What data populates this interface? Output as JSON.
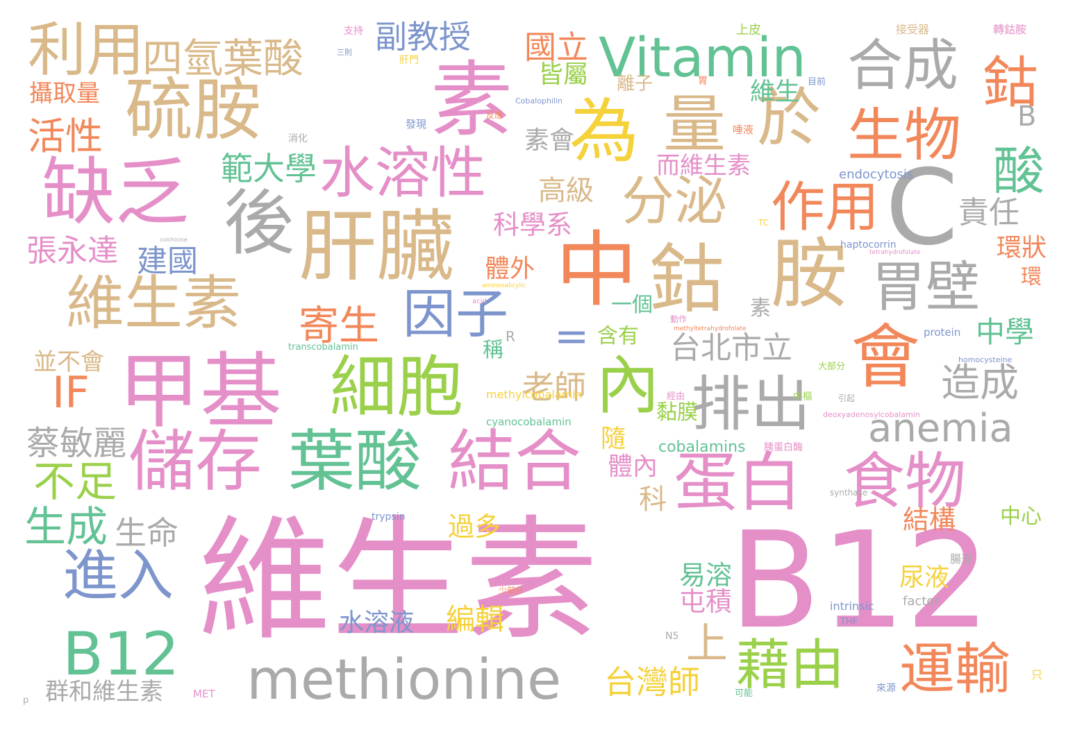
{
  "palette": {
    "pink": "#e58fc8",
    "tan": "#d9b98a",
    "green": "#62c294",
    "lime": "#9ad04a",
    "orange": "#f2875a",
    "blue": "#7d95cc",
    "gray": "#aaaaaa",
    "yellow": "#f5d13a"
  },
  "words": [
    {
      "text": "維生素",
      "color": "pink"
    },
    {
      "text": "B12",
      "color": "pink"
    },
    {
      "text": "中",
      "color": "orange"
    },
    {
      "text": "胺",
      "color": "tan"
    },
    {
      "text": "素",
      "color": "pink"
    },
    {
      "text": "肝臟",
      "color": "tan"
    },
    {
      "text": "鈷",
      "color": "tan"
    },
    {
      "text": "甲基",
      "color": "pink"
    },
    {
      "text": "會",
      "color": "orange"
    },
    {
      "text": "C",
      "color": "gray"
    },
    {
      "text": "Vitamin",
      "color": "green"
    },
    {
      "text": "硫胺",
      "color": "tan"
    },
    {
      "text": "缺乏",
      "color": "pink"
    },
    {
      "text": "後",
      "color": "gray"
    },
    {
      "text": "為",
      "color": "yellow"
    },
    {
      "text": "量",
      "color": "tan"
    },
    {
      "text": "於",
      "color": "tan"
    },
    {
      "text": "維生素",
      "color": "tan"
    },
    {
      "text": "細胞",
      "color": "lime"
    },
    {
      "text": "內",
      "color": "lime"
    },
    {
      "text": "儲存",
      "color": "pink"
    },
    {
      "text": "葉酸",
      "color": "green"
    },
    {
      "text": "結合",
      "color": "pink"
    },
    {
      "text": "蛋白",
      "color": "pink"
    },
    {
      "text": "食物",
      "color": "pink"
    },
    {
      "text": "水溶性",
      "color": "pink"
    },
    {
      "text": "胃壁",
      "color": "gray"
    },
    {
      "text": "排出",
      "color": "gray"
    },
    {
      "text": "methionine",
      "color": "gray"
    },
    {
      "text": "B12",
      "color": "green"
    },
    {
      "text": "利用",
      "color": "tan"
    },
    {
      "text": "合成",
      "color": "gray"
    },
    {
      "text": "生物",
      "color": "orange"
    },
    {
      "text": "分泌",
      "color": "tan"
    },
    {
      "text": "作用",
      "color": "orange"
    },
    {
      "text": "因子",
      "color": "blue"
    },
    {
      "text": "藉由",
      "color": "lime"
    },
    {
      "text": "運輸",
      "color": "orange"
    },
    {
      "text": "進入",
      "color": "blue"
    },
    {
      "text": "鈷",
      "color": "orange"
    },
    {
      "text": "酸",
      "color": "green"
    },
    {
      "text": "四氫葉酸",
      "color": "tan"
    },
    {
      "text": "anemia",
      "color": "gray"
    },
    {
      "text": "IF",
      "color": "orange"
    },
    {
      "text": "寄生",
      "color": "orange"
    },
    {
      "text": "造成",
      "color": "gray"
    },
    {
      "text": "台北市立",
      "color": "gray"
    },
    {
      "text": "中學",
      "color": "green"
    },
    {
      "text": "活性",
      "color": "orange"
    },
    {
      "text": "副教授",
      "color": "blue"
    },
    {
      "text": "國立",
      "color": "orange"
    },
    {
      "text": "範大學",
      "color": "green"
    },
    {
      "text": "張永達",
      "color": "pink"
    },
    {
      "text": "建國",
      "color": "blue"
    },
    {
      "text": "不足",
      "color": "lime"
    },
    {
      "text": "生成",
      "color": "green"
    },
    {
      "text": "生命",
      "color": "gray"
    },
    {
      "text": "蔡敏麗",
      "color": "gray"
    },
    {
      "text": "老師",
      "color": "tan"
    },
    {
      "text": "台灣師",
      "color": "yellow"
    },
    {
      "text": "群和維生素",
      "color": "gray"
    },
    {
      "text": "攝取量",
      "color": "orange"
    },
    {
      "text": "皆屬",
      "color": "lime"
    },
    {
      "text": "維生",
      "color": "green"
    },
    {
      "text": "高級",
      "color": "tan"
    },
    {
      "text": "科學系",
      "color": "pink"
    },
    {
      "text": "素會",
      "color": "gray"
    },
    {
      "text": "而維生素",
      "color": "pink"
    },
    {
      "text": "責任",
      "color": "gray"
    },
    {
      "text": "環狀",
      "color": "orange"
    },
    {
      "text": "環",
      "color": "orange"
    },
    {
      "text": "體外",
      "color": "orange"
    },
    {
      "text": "一個",
      "color": "green"
    },
    {
      "text": "素",
      "color": "gray"
    },
    {
      "text": "含有",
      "color": "lime"
    },
    {
      "text": "稱",
      "color": "green"
    },
    {
      "text": "=",
      "color": "blue"
    },
    {
      "text": "上",
      "color": "tan"
    },
    {
      "text": "隨",
      "color": "yellow"
    },
    {
      "text": "體內",
      "color": "pink"
    },
    {
      "text": "科",
      "color": "tan"
    },
    {
      "text": "過多",
      "color": "yellow"
    },
    {
      "text": "結構",
      "color": "orange"
    },
    {
      "text": "易溶",
      "color": "green"
    },
    {
      "text": "屯積",
      "color": "pink"
    },
    {
      "text": "尿液",
      "color": "yellow"
    },
    {
      "text": "中心",
      "color": "lime"
    },
    {
      "text": "水溶液",
      "color": "blue"
    },
    {
      "text": "編輯",
      "color": "yellow"
    },
    {
      "text": "並不會",
      "color": "tan"
    },
    {
      "text": "cobalamins",
      "color": "green"
    },
    {
      "text": "黏膜",
      "color": "lime"
    },
    {
      "text": "離子",
      "color": "tan"
    },
    {
      "text": "B",
      "color": "gray"
    },
    {
      "text": "endocytosis",
      "color": "blue"
    },
    {
      "text": "haptocorrin",
      "color": "blue"
    },
    {
      "text": "transcobalamin",
      "color": "green"
    },
    {
      "text": "methylcobalamin",
      "color": "yellow"
    },
    {
      "text": "cyanocobalamin",
      "color": "green"
    },
    {
      "text": "Cobalophilin",
      "color": "blue"
    },
    {
      "text": "protein",
      "color": "blue"
    },
    {
      "text": "intrinsic",
      "color": "blue"
    },
    {
      "text": "factor",
      "color": "gray"
    },
    {
      "text": "trypsin",
      "color": "blue"
    },
    {
      "text": "synthase",
      "color": "gray"
    },
    {
      "text": "homocysteine",
      "color": "blue"
    },
    {
      "text": "deoxyadenosylcobalamin",
      "color": "pink"
    },
    {
      "text": "tetrahydrofolate",
      "color": "pink"
    },
    {
      "text": "methyltetrahydrofolate",
      "color": "orange"
    },
    {
      "text": "aminosalicylic",
      "color": "yellow"
    },
    {
      "text": "acid",
      "color": "pink"
    },
    {
      "text": "colchicine",
      "color": "gray"
    },
    {
      "text": "上皮",
      "color": "lime"
    },
    {
      "text": "接受器",
      "color": "tan"
    },
    {
      "text": "轉鈷胺",
      "color": "pink"
    },
    {
      "text": "支持",
      "color": "pink"
    },
    {
      "text": "三則",
      "color": "blue"
    },
    {
      "text": "肝門",
      "color": "yellow"
    },
    {
      "text": "胃",
      "color": "orange"
    },
    {
      "text": "目前",
      "color": "blue"
    },
    {
      "text": "發現",
      "color": "blue"
    },
    {
      "text": "消化",
      "color": "gray"
    },
    {
      "text": "唾液",
      "color": "orange"
    },
    {
      "text": "反應",
      "color": "orange"
    },
    {
      "text": "TC",
      "color": "yellow"
    },
    {
      "text": "R",
      "color": "gray"
    },
    {
      "text": "THF",
      "color": "blue"
    },
    {
      "text": "N5",
      "color": "gray"
    },
    {
      "text": "MET",
      "color": "pink"
    },
    {
      "text": "大部分",
      "color": "lime"
    },
    {
      "text": "經由",
      "color": "pink"
    },
    {
      "text": "中樞",
      "color": "lime"
    },
    {
      "text": "引起",
      "color": "gray"
    },
    {
      "text": "胰蛋白酶",
      "color": "pink"
    },
    {
      "text": "少部分",
      "color": "orange"
    },
    {
      "text": "腸道",
      "color": "gray"
    },
    {
      "text": "可能",
      "color": "green"
    },
    {
      "text": "動作",
      "color": "pink"
    },
    {
      "text": "來源",
      "color": "blue"
    },
    {
      "text": "只",
      "color": "yellow"
    },
    {
      "text": "p",
      "color": "gray"
    }
  ]
}
